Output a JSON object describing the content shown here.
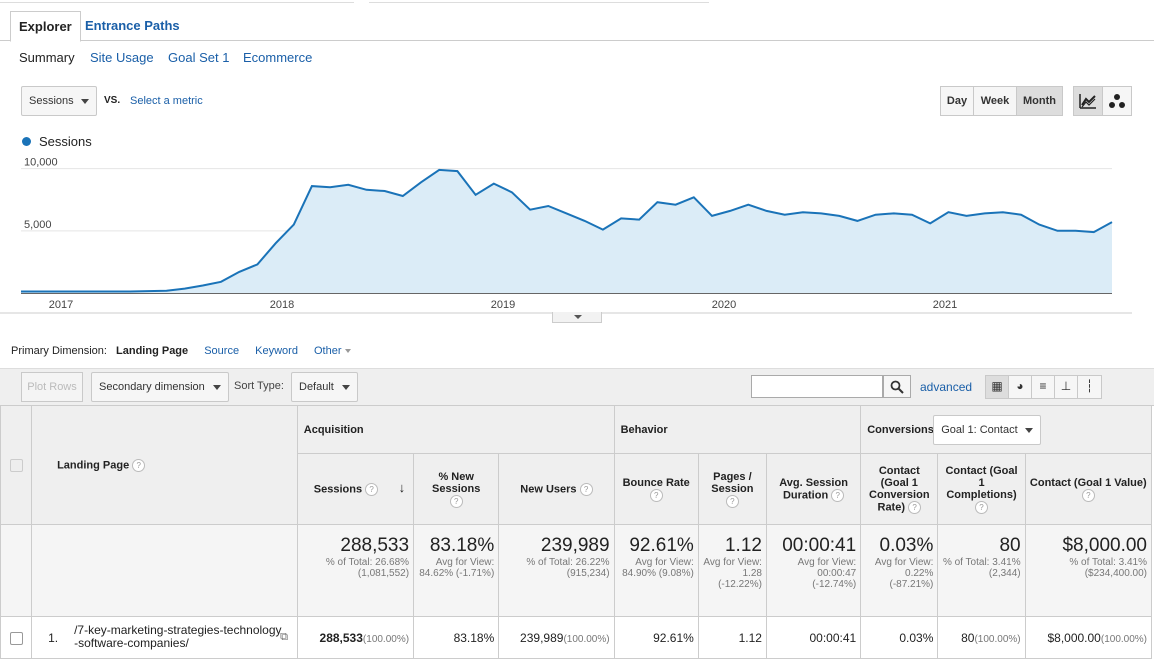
{
  "tabs": {
    "explorer": "Explorer",
    "entrance_paths": "Entrance Paths"
  },
  "subtabs": [
    "Summary",
    "Site Usage",
    "Goal Set 1",
    "Ecommerce"
  ],
  "metric": {
    "primary": "Sessions",
    "vs": "VS.",
    "select_metric": "Select a metric"
  },
  "period": {
    "day": "Day",
    "week": "Week",
    "month": "Month",
    "selected": "Month"
  },
  "chart_data": {
    "type": "area",
    "series": [
      {
        "name": "Sessions",
        "color": "#1a73b8",
        "values": [
          120,
          120,
          120,
          120,
          120,
          120,
          120,
          150,
          180,
          350,
          600,
          900,
          1700,
          2300,
          4000,
          5500,
          8600,
          8500,
          8700,
          8300,
          8200,
          7800,
          8900,
          9900,
          9800,
          7900,
          8800,
          8100,
          6700,
          7000,
          6400,
          5800,
          5100,
          6000,
          5900,
          7300,
          7100,
          7700,
          6200,
          6600,
          7100,
          6600,
          6300,
          6500,
          6400,
          6200,
          5800,
          6300,
          6400,
          6300,
          5600,
          6500,
          6200,
          6400,
          6500,
          6300,
          5500,
          5000,
          5000,
          4900,
          5700
        ]
      }
    ],
    "x_ticks": [
      "2017",
      "2018",
      "2019",
      "2020",
      "2021"
    ],
    "y_ticks": [
      "10,000",
      "5,000"
    ],
    "ylim": [
      0,
      11500
    ],
    "grid": true
  },
  "dimension": {
    "label": "Primary Dimension:",
    "active": "Landing Page",
    "options": [
      "Source",
      "Keyword",
      "Other"
    ]
  },
  "toolbar": {
    "plot_rows": "Plot Rows",
    "secondary": "Secondary dimension",
    "sort_label": "Sort Type:",
    "sort_value": "Default",
    "search_placeholder": "",
    "advanced": "advanced"
  },
  "table": {
    "landing_page_header": "Landing Page",
    "groups": {
      "acquisition": "Acquisition",
      "behavior": "Behavior",
      "conversions": "Conversions",
      "goal_select": "Goal 1: Contact"
    },
    "columns": [
      "Sessions",
      "% New Sessions",
      "New Users",
      "Bounce Rate",
      "Pages / Session",
      "Avg. Session Duration",
      "Contact (Goal 1 Conversion Rate)",
      "Contact (Goal 1 Completions)",
      "Contact (Goal 1 Value)"
    ],
    "totals": [
      {
        "big": "288,533",
        "small": "% of Total: 26.68% (1,081,552)"
      },
      {
        "big": "83.18%",
        "small": "Avg for View: 84.62% (-1.71%)"
      },
      {
        "big": "239,989",
        "small": "% of Total: 26.22% (915,234)"
      },
      {
        "big": "92.61%",
        "small": "Avg for View: 84.90% (9.08%)"
      },
      {
        "big": "1.12",
        "small": "Avg for View: 1.28 (-12.22%)"
      },
      {
        "big": "00:00:41",
        "small": "Avg for View: 00:00:47 (-12.74%)"
      },
      {
        "big": "0.03%",
        "small": "Avg for View: 0.22% (-87.21%)"
      },
      {
        "big": "80",
        "small": "% of Total: 3.41% (2,344)"
      },
      {
        "big": "$8,000.00",
        "small": "% of Total: 3.41% ($234,400.00)"
      }
    ],
    "row": {
      "index": "1.",
      "page": "/7-key-marketing-strategies-technology-software-companies/",
      "sessions": "288,533",
      "sessions_pct": "(100.00%)",
      "new_sessions": "83.18%",
      "new_users": "239,989",
      "new_users_pct": "(100.00%)",
      "bounce": "92.61%",
      "pages": "1.12",
      "duration": "00:00:41",
      "conv_rate": "0.03%",
      "completions": "80",
      "completions_pct": "(100.00%)",
      "value": "$8,000.00",
      "value_pct": "(100.00%)"
    }
  }
}
